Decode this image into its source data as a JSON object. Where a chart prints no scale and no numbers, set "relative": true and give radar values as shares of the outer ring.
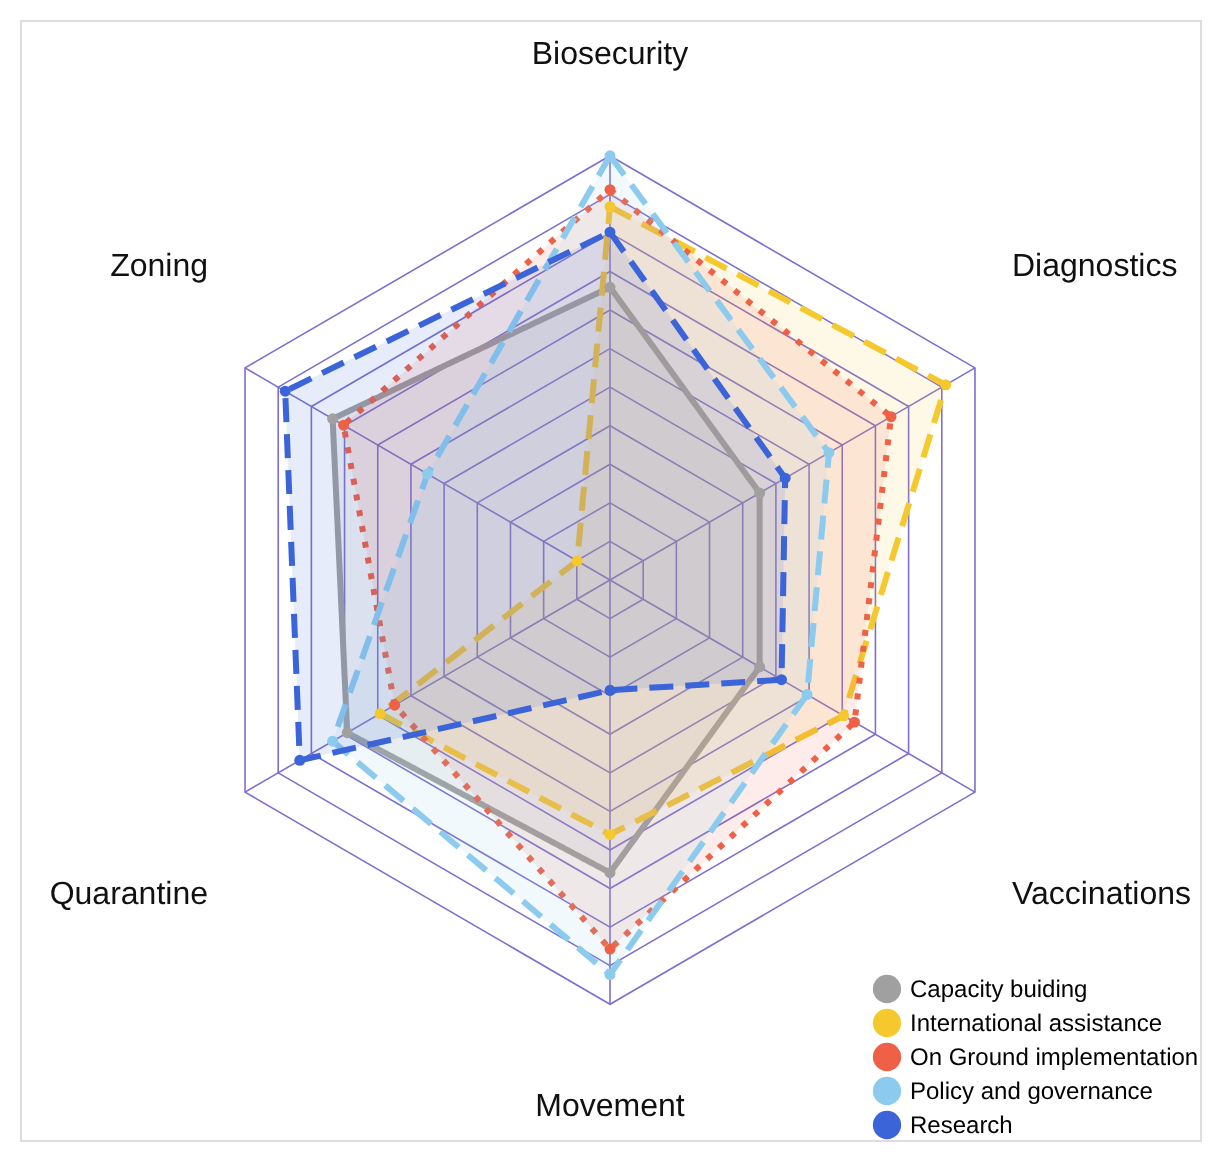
{
  "chart_data": {
    "type": "radar",
    "relative": true,
    "grid": true,
    "legend": "bottom right",
    "marker": "circle",
    "categories": [
      "Biosecurity",
      "Diagnostics",
      "Vaccinations",
      "Movement",
      "Quarantine",
      "Zoning"
    ],
    "series": [
      {
        "name": "Capacity buiding",
        "color": "#a0a0a0",
        "line_style": "solid",
        "values": [
          0.69,
          0.41,
          0.41,
          0.69,
          0.72,
          0.76
        ]
      },
      {
        "name": "International assistance",
        "color": "#f5c92e",
        "line_style": "dashed",
        "values": [
          0.88,
          0.92,
          0.64,
          0.6,
          0.63,
          0.09
        ]
      },
      {
        "name": "On Ground implementation",
        "color": "#ee6146",
        "line_style": "dotted",
        "values": [
          0.92,
          0.77,
          0.67,
          0.87,
          0.59,
          0.73
        ]
      },
      {
        "name": "Policy and governance",
        "color": "#8ccbee",
        "line_style": "dashed",
        "values": [
          1.0,
          0.6,
          0.54,
          0.93,
          0.76,
          0.5
        ]
      },
      {
        "name": "Research",
        "color": "#3a64d8",
        "line_style": "dashed",
        "values": [
          0.82,
          0.48,
          0.47,
          0.26,
          0.85,
          0.89
        ]
      }
    ]
  }
}
